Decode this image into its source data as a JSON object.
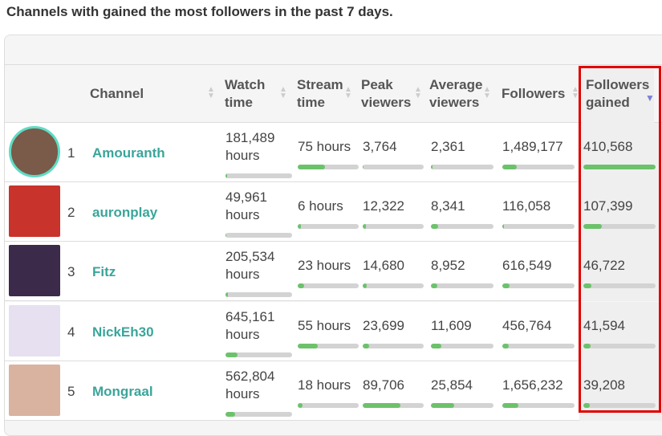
{
  "title": "Channels with gained the most followers in the past 7 days.",
  "columns": {
    "channel": "Channel",
    "watch": "Watch time",
    "stream": "Stream time",
    "peak": "Peak viewers",
    "avg": "Average viewers",
    "followers": "Followers",
    "gained": "Followers gained"
  },
  "sort": {
    "column": "Followers gained",
    "direction": "descending",
    "color": "#7b7fd6"
  },
  "accent": "#3aa59a",
  "bar_color": "#6cc26b",
  "highlight_color": "#e00000",
  "rows": [
    {
      "rank": "1",
      "channel": "Amouranth",
      "watch_num": "181,489",
      "watch_unit": "hours",
      "stream": "75 hours",
      "peak": "3,764",
      "avg": "2,361",
      "followers": "1,489,177",
      "gained": "410,568",
      "bars": {
        "watch": 0.02,
        "stream": 0.45,
        "peak": 0.01,
        "avg": 0.02,
        "followers": 0.2,
        "gained": 1.0
      },
      "avatar_color": "#7a5a48"
    },
    {
      "rank": "2",
      "channel": "auronplay",
      "watch_num": "49,961",
      "watch_unit": "hours",
      "stream": "6 hours",
      "peak": "12,322",
      "avg": "8,341",
      "followers": "116,058",
      "gained": "107,399",
      "bars": {
        "watch": 0.01,
        "stream": 0.05,
        "peak": 0.05,
        "avg": 0.11,
        "followers": 0.02,
        "gained": 0.26
      },
      "avatar_color": "#c8332c"
    },
    {
      "rank": "3",
      "channel": "Fitz",
      "watch_num": "205,534",
      "watch_unit": "hours",
      "stream": "23 hours",
      "peak": "14,680",
      "avg": "8,952",
      "followers": "616,549",
      "gained": "46,722",
      "bars": {
        "watch": 0.04,
        "stream": 0.1,
        "peak": 0.06,
        "avg": 0.1,
        "followers": 0.1,
        "gained": 0.11
      },
      "avatar_color": "#3b2a4a"
    },
    {
      "rank": "4",
      "channel": "NickEh30",
      "watch_num": "645,161",
      "watch_unit": "hours",
      "stream": "55 hours",
      "peak": "23,699",
      "avg": "11,609",
      "followers": "456,764",
      "gained": "41,594",
      "bars": {
        "watch": 0.18,
        "stream": 0.33,
        "peak": 0.1,
        "avg": 0.17,
        "followers": 0.09,
        "gained": 0.1
      },
      "avatar_color": "#e6e0f0"
    },
    {
      "rank": "5",
      "channel": "Mongraal",
      "watch_num": "562,804",
      "watch_unit": "hours",
      "stream": "18 hours",
      "peak": "89,706",
      "avg": "25,854",
      "followers": "1,656,232",
      "gained": "39,208",
      "bars": {
        "watch": 0.15,
        "stream": 0.08,
        "peak": 0.62,
        "avg": 0.37,
        "followers": 0.22,
        "gained": 0.09
      },
      "avatar_color": "#d9b3a0"
    }
  ]
}
